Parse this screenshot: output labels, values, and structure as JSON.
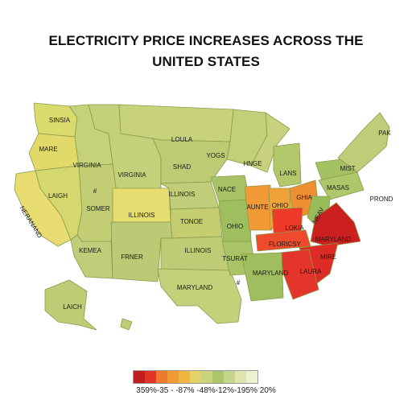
{
  "title": {
    "line1": "ELECTRICITY PRICE INCREASES ACROSS THE",
    "line2": "UNITED STATES"
  },
  "colors": {
    "border": "#8a9a4a",
    "water": "#ffffff",
    "text": "#1a1a1a"
  },
  "map": {
    "regions": [
      {
        "label": "SINSIA",
        "color": "#d9db6d"
      },
      {
        "label": "MARE",
        "color": "#e1d96a"
      },
      {
        "label": "NERANAND",
        "color": "#e9dd72"
      },
      {
        "label": "LAIGH",
        "color": "#d5d86f"
      },
      {
        "label": "VIRGINIA",
        "color": "#c6d277"
      },
      {
        "label": "VIRGINIA",
        "color": "#c4d07a"
      },
      {
        "label": "LOULA",
        "color": "#c7d27b"
      },
      {
        "label": "SHAD",
        "color": "#bccb74"
      },
      {
        "label": "YOGS",
        "color": "#c4cf7a"
      },
      {
        "label": "HNGE",
        "color": "#c8d27e"
      },
      {
        "label": "SOMER",
        "color": "#c2cd74"
      },
      {
        "label": "ILLINOIS",
        "color": "#e6de71"
      },
      {
        "label": "ILLINOIS",
        "color": "#c4d07a"
      },
      {
        "label": "TONOE",
        "color": "#c0ce7a"
      },
      {
        "label": "KEMEA",
        "color": "#c4ce71"
      },
      {
        "label": "FRNER",
        "color": "#c1cd78"
      },
      {
        "label": "ILLINOIS",
        "color": "#bbca74"
      },
      {
        "label": "MARYLAND",
        "color": "#bfcc76"
      },
      {
        "label": "NACE",
        "color": "#a8c366"
      },
      {
        "label": "OHIO",
        "color": "#9fbf5f"
      },
      {
        "label": "TSURAT",
        "color": "#a9c369"
      },
      {
        "label": "AUNTE",
        "color": "#f29a35"
      },
      {
        "label": "OHIO",
        "color": "#f2a23a"
      },
      {
        "label": "GHIA",
        "color": "#ee8f31"
      },
      {
        "label": "LANS",
        "color": "#b3c86a"
      },
      {
        "label": "MIST",
        "color": "#a5c262"
      },
      {
        "label": "MASAS",
        "color": "#afc76b"
      },
      {
        "label": "PAK",
        "color": "#bdcd78"
      },
      {
        "label": "NEAV",
        "color": "#97bc59"
      },
      {
        "label": "LOKIA",
        "color": "#ef3a2a"
      },
      {
        "label": "FLORICSY",
        "color": "#ef4a2b"
      },
      {
        "label": "MARYLAND",
        "color": "#cc1f1f"
      },
      {
        "label": "MIRE",
        "color": "#dd2c25"
      },
      {
        "label": "LAURA",
        "color": "#e3352b"
      },
      {
        "label": "MARYLAND",
        "color": "#9ebe5f"
      },
      {
        "label": "LAICH",
        "color": "#bfcc76"
      },
      {
        "label": "PROND",
        "color": "#ffffff"
      }
    ],
    "marker": "#"
  },
  "legend": {
    "colors": [
      "#c01f1f",
      "#e33427",
      "#ee7a30",
      "#f29a35",
      "#f0b542",
      "#e2d267",
      "#c9d57a",
      "#aac56a",
      "#c6d58c",
      "#dfe4ad",
      "#eef0d2"
    ],
    "label": "359%-35 - -87% -48%-12%-195% 20%"
  }
}
